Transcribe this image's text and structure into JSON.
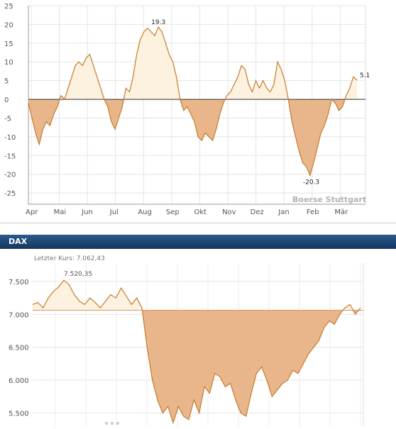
{
  "chart_data": [
    {
      "type": "area",
      "title": "",
      "xlabel": "",
      "ylabel": "",
      "ylim": [
        -28,
        25
      ],
      "yticks": [
        25,
        20,
        15,
        10,
        5,
        0,
        -5,
        -10,
        -15,
        -20,
        -25
      ],
      "ytick_labels": [
        "25",
        "20",
        "15",
        "10",
        "5",
        "0",
        "-5",
        "-10",
        "-15",
        "-20",
        "-25"
      ],
      "x_labels": [
        "Apr",
        "Mai",
        "Jun",
        "Jul",
        "Aug",
        "Sep",
        "Okt",
        "Nov",
        "Dez",
        "Jan",
        "Feb",
        "Mär"
      ],
      "baseline": 0,
      "grid": true,
      "annotations": [
        {
          "label": "19.3",
          "value": 19.3
        },
        {
          "label": "-20.3",
          "value": -20.3
        },
        {
          "label": "5.1",
          "value": 5.1
        }
      ],
      "watermark": "Boerse Stuttgart",
      "points": [
        [
          0,
          -1
        ],
        [
          2,
          -5
        ],
        [
          4,
          -9
        ],
        [
          6,
          -12
        ],
        [
          8,
          -8
        ],
        [
          10,
          -6
        ],
        [
          12,
          -7
        ],
        [
          14,
          -4
        ],
        [
          16,
          -2
        ],
        [
          18,
          1
        ],
        [
          20,
          0
        ],
        [
          22,
          3
        ],
        [
          24,
          6
        ],
        [
          26,
          9
        ],
        [
          28,
          10
        ],
        [
          30,
          9
        ],
        [
          32,
          11
        ],
        [
          34,
          12
        ],
        [
          36,
          9
        ],
        [
          38,
          6
        ],
        [
          40,
          3
        ],
        [
          42,
          0
        ],
        [
          44,
          -2
        ],
        [
          46,
          -6
        ],
        [
          48,
          -8
        ],
        [
          50,
          -5
        ],
        [
          52,
          -2
        ],
        [
          54,
          3
        ],
        [
          56,
          2
        ],
        [
          58,
          6
        ],
        [
          60,
          12
        ],
        [
          62,
          16
        ],
        [
          64,
          18
        ],
        [
          66,
          19
        ],
        [
          68,
          18
        ],
        [
          70,
          17
        ],
        [
          72,
          19.3
        ],
        [
          74,
          18
        ],
        [
          76,
          15
        ],
        [
          78,
          12
        ],
        [
          80,
          10
        ],
        [
          82,
          6
        ],
        [
          84,
          0
        ],
        [
          86,
          -3
        ],
        [
          88,
          -2
        ],
        [
          90,
          -4
        ],
        [
          92,
          -6
        ],
        [
          94,
          -10
        ],
        [
          96,
          -11
        ],
        [
          98,
          -9
        ],
        [
          100,
          -10
        ],
        [
          102,
          -11
        ],
        [
          104,
          -8
        ],
        [
          106,
          -4
        ],
        [
          108,
          -1
        ],
        [
          110,
          1
        ],
        [
          112,
          2
        ],
        [
          114,
          4
        ],
        [
          116,
          6
        ],
        [
          118,
          9
        ],
        [
          120,
          8
        ],
        [
          122,
          4
        ],
        [
          124,
          2
        ],
        [
          126,
          5
        ],
        [
          128,
          3
        ],
        [
          130,
          5
        ],
        [
          132,
          3
        ],
        [
          134,
          2
        ],
        [
          136,
          4
        ],
        [
          138,
          10
        ],
        [
          140,
          8
        ],
        [
          142,
          5
        ],
        [
          144,
          0
        ],
        [
          146,
          -6
        ],
        [
          148,
          -10
        ],
        [
          150,
          -14
        ],
        [
          152,
          -17
        ],
        [
          154,
          -18
        ],
        [
          156,
          -20.3
        ],
        [
          158,
          -17
        ],
        [
          160,
          -13
        ],
        [
          162,
          -9
        ],
        [
          164,
          -7
        ],
        [
          166,
          -4
        ],
        [
          168,
          0
        ],
        [
          170,
          -1
        ],
        [
          172,
          -3
        ],
        [
          174,
          -2
        ],
        [
          176,
          1
        ],
        [
          178,
          3
        ],
        [
          180,
          6
        ],
        [
          182,
          5.1
        ]
      ]
    },
    {
      "type": "area",
      "title": "DAX",
      "xlabel": "",
      "ylabel": "",
      "ylim": [
        5300,
        7780
      ],
      "yticks": [
        7500,
        7000,
        6500,
        6000,
        5500
      ],
      "ytick_labels": [
        "7.500",
        "7.000",
        "6.500",
        "6.000",
        "5.500"
      ],
      "last_price_label": "Letzter Kurs: 7.062,43",
      "last_price": 7062.43,
      "max_label": "7.520,35",
      "max_value": 7520.35,
      "baseline": 7062.43,
      "grid": true,
      "points": [
        [
          0,
          7150
        ],
        [
          3,
          7180
        ],
        [
          6,
          7100
        ],
        [
          9,
          7250
        ],
        [
          12,
          7350
        ],
        [
          15,
          7420
        ],
        [
          18,
          7520.35
        ],
        [
          21,
          7450
        ],
        [
          24,
          7300
        ],
        [
          27,
          7200
        ],
        [
          30,
          7150
        ],
        [
          33,
          7250
        ],
        [
          36,
          7180
        ],
        [
          39,
          7100
        ],
        [
          42,
          7200
        ],
        [
          45,
          7300
        ],
        [
          48,
          7250
        ],
        [
          51,
          7400
        ],
        [
          54,
          7280
        ],
        [
          57,
          7150
        ],
        [
          60,
          7250
        ],
        [
          63,
          7100
        ],
        [
          66,
          6500
        ],
        [
          69,
          6000
        ],
        [
          72,
          5700
        ],
        [
          75,
          5500
        ],
        [
          78,
          5600
        ],
        [
          81,
          5350
        ],
        [
          84,
          5600
        ],
        [
          87,
          5450
        ],
        [
          90,
          5400
        ],
        [
          93,
          5700
        ],
        [
          96,
          5500
        ],
        [
          99,
          5900
        ],
        [
          102,
          5800
        ],
        [
          105,
          6100
        ],
        [
          108,
          6050
        ],
        [
          111,
          5900
        ],
        [
          114,
          5950
        ],
        [
          117,
          5700
        ],
        [
          120,
          5500
        ],
        [
          123,
          5450
        ],
        [
          126,
          5800
        ],
        [
          129,
          6100
        ],
        [
          132,
          6200
        ],
        [
          135,
          6000
        ],
        [
          138,
          5750
        ],
        [
          141,
          5850
        ],
        [
          144,
          5950
        ],
        [
          147,
          6000
        ],
        [
          150,
          6150
        ],
        [
          153,
          6100
        ],
        [
          156,
          6250
        ],
        [
          159,
          6400
        ],
        [
          162,
          6500
        ],
        [
          165,
          6600
        ],
        [
          168,
          6800
        ],
        [
          171,
          6900
        ],
        [
          174,
          6850
        ],
        [
          177,
          7000
        ],
        [
          180,
          7100
        ],
        [
          183,
          7150
        ],
        [
          186,
          7000
        ],
        [
          189,
          7100
        ]
      ]
    }
  ]
}
